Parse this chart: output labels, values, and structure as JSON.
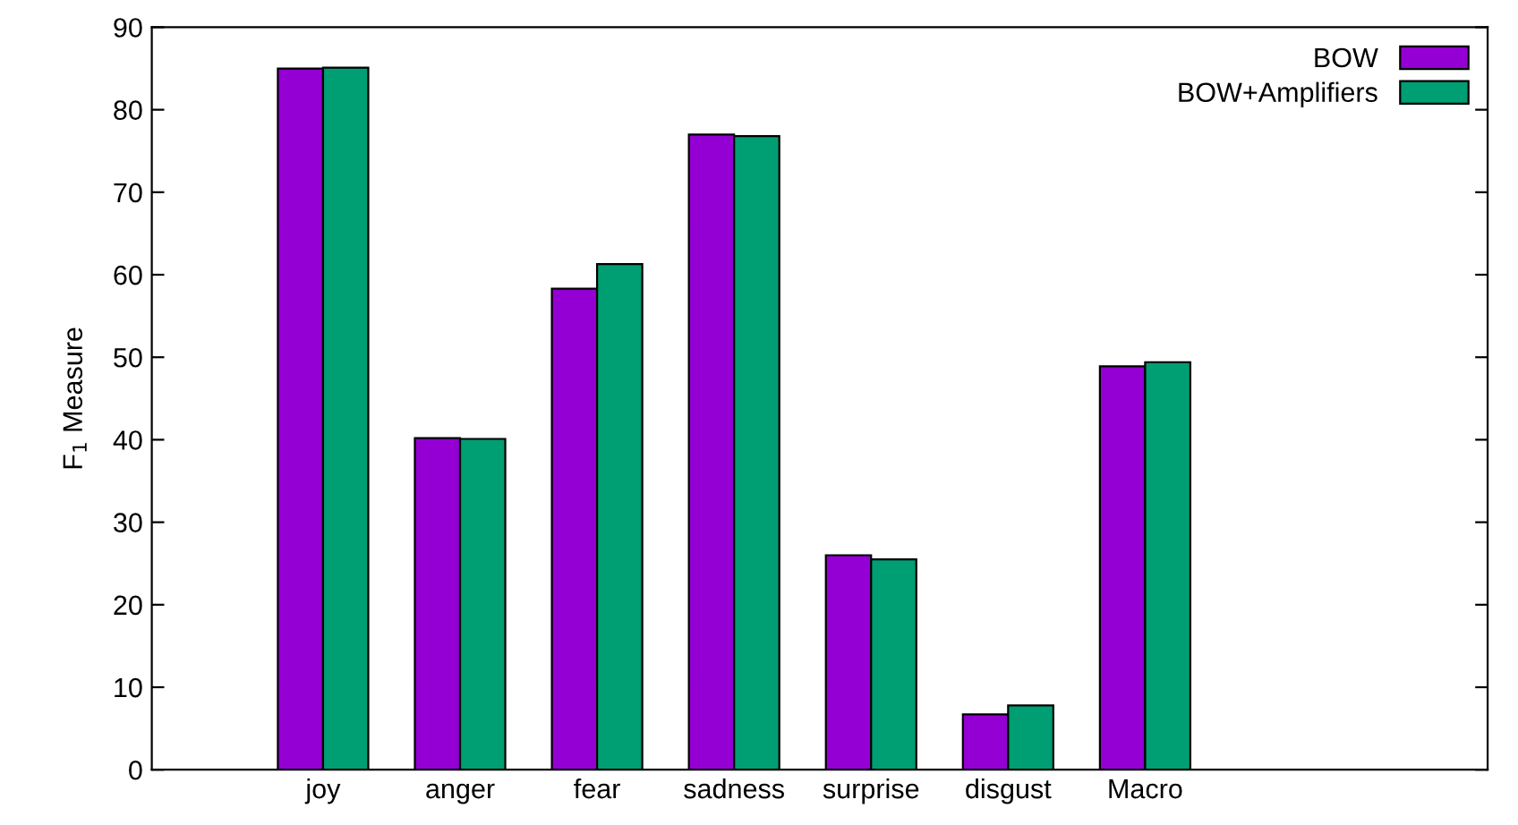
{
  "chart_data": {
    "type": "bar",
    "ylabel": "F$_{1}$ Measure",
    "categories": [
      "joy",
      "anger",
      "fear",
      "sadness",
      "surprise",
      "disgust",
      "Macro"
    ],
    "series": [
      {
        "name": "BOW",
        "color": "#9400d3",
        "values": [
          85.0,
          40.2,
          58.3,
          77.0,
          26.0,
          6.7,
          48.9
        ]
      },
      {
        "name": "BOW+Amplifiers",
        "color": "#009e73",
        "values": [
          85.1,
          40.1,
          61.3,
          76.8,
          25.5,
          7.8,
          49.4
        ]
      }
    ],
    "ylim": [
      0,
      90
    ],
    "yticks": [
      0,
      10,
      20,
      30,
      40,
      50,
      60,
      70,
      80,
      90
    ],
    "legend": "top right",
    "grid": false
  }
}
